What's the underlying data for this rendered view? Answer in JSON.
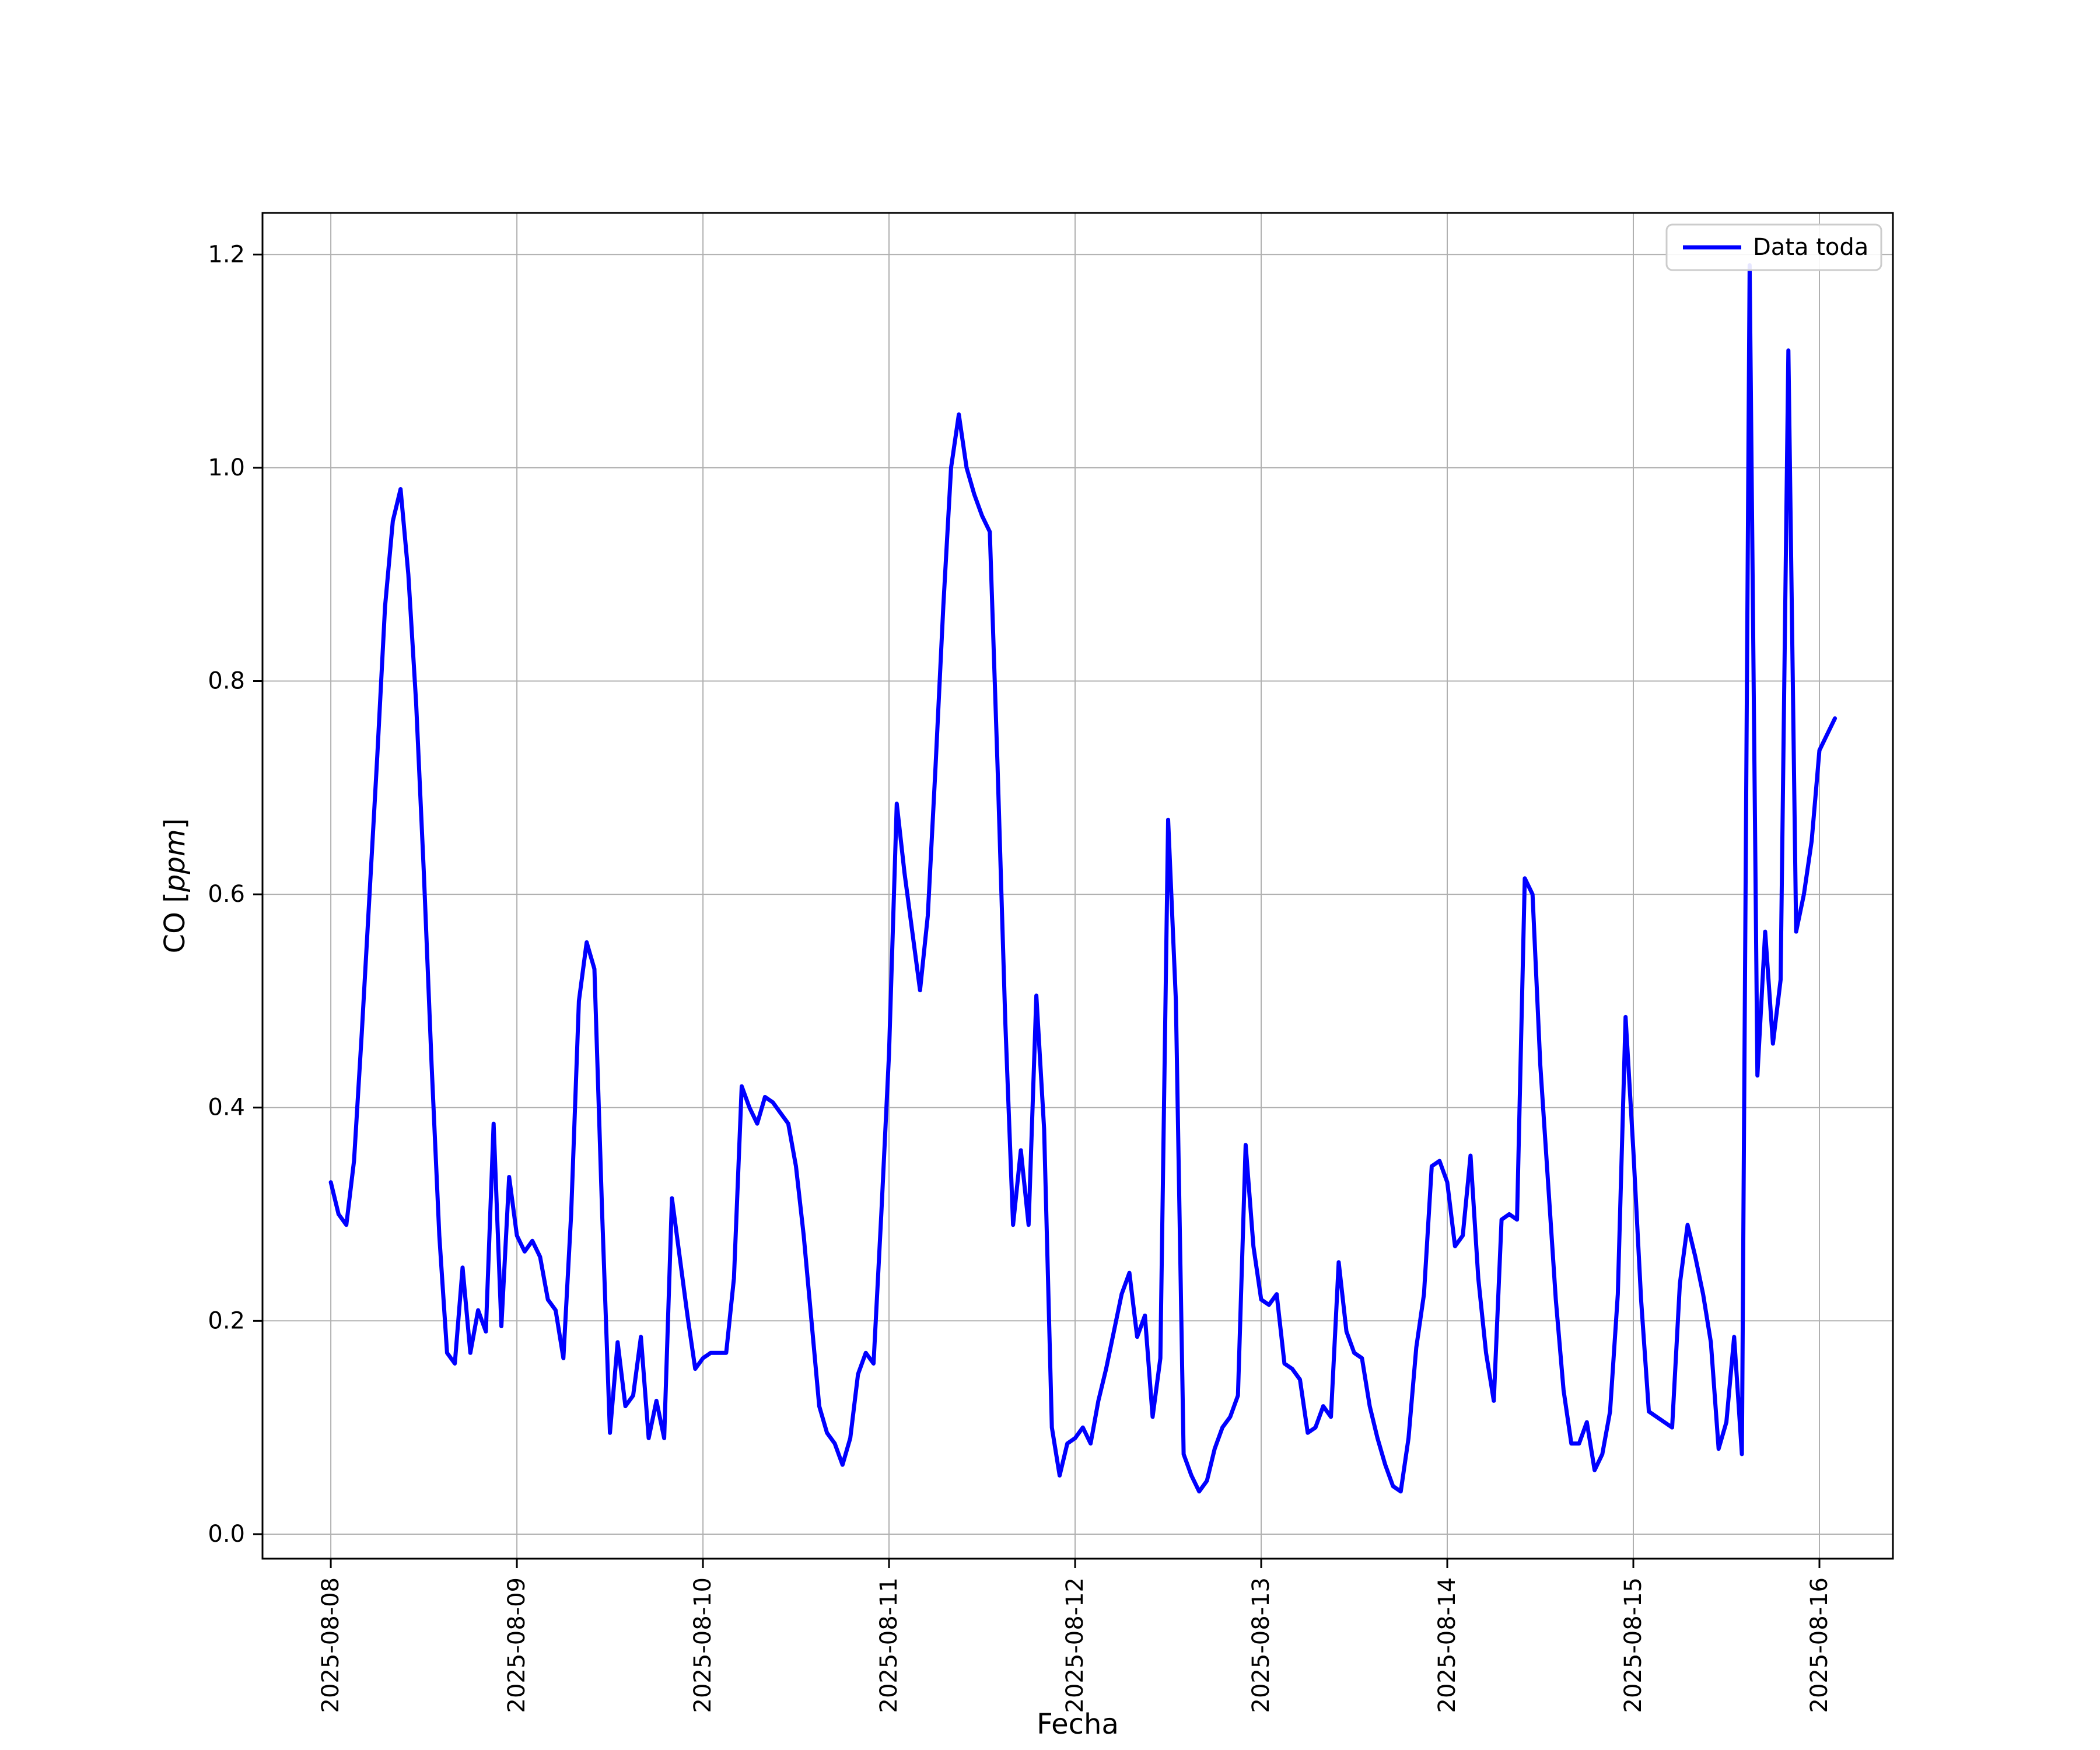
{
  "figure": {
    "background": "#ffffff",
    "line_color": "#0000ff",
    "grid_color": "#b0b0b0",
    "spine_color": "#000000",
    "legend_border_color": "#cccccc",
    "ylabel_parts": {
      "prefix": "CO [",
      "italic": "ppm",
      "suffix": "]"
    }
  },
  "chart_data": {
    "type": "line",
    "title": "",
    "xlabel": "Fecha",
    "ylabel": "CO [ppm]",
    "legend_label": "Data toda",
    "legend_position": "upper right",
    "grid": true,
    "x_tick_labels": [
      "2025-08-08",
      "2025-08-09",
      "2025-08-10",
      "2025-08-11",
      "2025-08-12",
      "2025-08-13",
      "2025-08-14",
      "2025-08-15",
      "2025-08-16"
    ],
    "y_ticks": [
      0.0,
      0.2,
      0.4,
      0.6,
      0.8,
      1.0,
      1.2
    ],
    "ylim": [
      -0.023,
      1.239
    ],
    "xlim_days": [
      -0.367,
      8.395
    ],
    "x_start_label": "2025-08-08",
    "x_step_hours": 1,
    "series": [
      {
        "name": "Data toda",
        "color": "#0000ff",
        "values": [
          0.33,
          0.3,
          0.29,
          0.35,
          0.47,
          0.6,
          0.73,
          0.87,
          0.95,
          0.98,
          0.9,
          0.78,
          0.62,
          0.44,
          0.28,
          0.17,
          0.16,
          0.25,
          0.17,
          0.21,
          0.19,
          0.385,
          0.195,
          0.335,
          0.28,
          0.265,
          0.275,
          0.26,
          0.22,
          0.21,
          0.165,
          0.3,
          0.5,
          0.555,
          0.53,
          0.3,
          0.095,
          0.18,
          0.12,
          0.13,
          0.185,
          0.09,
          0.125,
          0.09,
          0.315,
          0.26,
          0.205,
          0.155,
          0.165,
          0.17,
          0.17,
          0.17,
          0.24,
          0.42,
          0.4,
          0.385,
          0.41,
          0.405,
          0.395,
          0.385,
          0.345,
          0.28,
          0.2,
          0.12,
          0.095,
          0.085,
          0.065,
          0.09,
          0.15,
          0.17,
          0.16,
          0.3,
          0.45,
          0.685,
          0.62,
          0.565,
          0.51,
          0.58,
          0.72,
          0.87,
          1.0,
          1.05,
          1.0,
          0.975,
          0.955,
          0.94,
          0.72,
          0.48,
          0.29,
          0.36,
          0.29,
          0.505,
          0.38,
          0.1,
          0.055,
          0.085,
          0.09,
          0.1,
          0.085,
          0.125,
          0.155,
          0.19,
          0.225,
          0.245,
          0.185,
          0.205,
          0.11,
          0.165,
          0.67,
          0.5,
          0.075,
          0.055,
          0.04,
          0.05,
          0.08,
          0.1,
          0.11,
          0.13,
          0.365,
          0.27,
          0.22,
          0.215,
          0.225,
          0.16,
          0.155,
          0.145,
          0.095,
          0.1,
          0.12,
          0.11,
          0.255,
          0.19,
          0.17,
          0.165,
          0.12,
          0.09,
          0.065,
          0.045,
          0.04,
          0.09,
          0.175,
          0.225,
          0.345,
          0.35,
          0.33,
          0.27,
          0.28,
          0.355,
          0.24,
          0.17,
          0.125,
          0.295,
          0.3,
          0.295,
          0.615,
          0.6,
          0.44,
          0.33,
          0.22,
          0.135,
          0.085,
          0.085,
          0.105,
          0.06,
          0.075,
          0.115,
          0.225,
          0.485,
          0.36,
          0.22,
          0.115,
          0.11,
          0.105,
          0.1,
          0.235,
          0.29,
          0.26,
          0.225,
          0.18,
          0.08,
          0.105,
          0.185,
          0.075,
          1.19,
          0.43,
          0.565,
          0.46,
          0.52,
          1.11,
          0.565,
          0.6,
          0.65,
          0.735,
          0.75,
          0.765
        ]
      }
    ]
  }
}
